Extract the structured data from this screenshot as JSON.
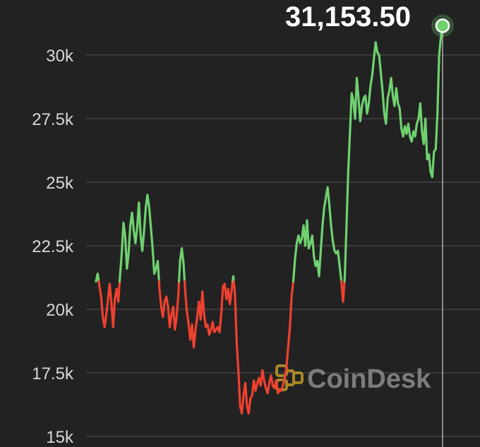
{
  "chart_data": {
    "type": "line",
    "title": "",
    "xlabel": "",
    "ylabel": "",
    "current_price_label": "31,153.50",
    "baseline_value": 21100,
    "ylim": [
      15000,
      31500
    ],
    "yticks": [
      {
        "value": 15000,
        "label": "15k"
      },
      {
        "value": 17500,
        "label": "17.5k"
      },
      {
        "value": 20000,
        "label": "20k"
      },
      {
        "value": 22500,
        "label": "22.5k"
      },
      {
        "value": 25000,
        "label": "25k"
      },
      {
        "value": 27500,
        "label": "27.5k"
      },
      {
        "value": 30000,
        "label": "30k"
      }
    ],
    "grid": true,
    "colors": {
      "above": "#6fd16f",
      "below": "#ef4130",
      "background": "#222222",
      "grid": "#4a4a4a",
      "marker": "#6fd16f"
    },
    "values": [
      21100,
      21400,
      20900,
      20500,
      19700,
      19300,
      19800,
      20400,
      21000,
      20200,
      19300,
      20400,
      20800,
      20300,
      21300,
      22200,
      23400,
      22900,
      21600,
      22200,
      23300,
      23800,
      23100,
      22600,
      23200,
      24200,
      22900,
      22300,
      23100,
      24000,
      24500,
      24000,
      23200,
      22400,
      21400,
      21600,
      21900,
      20800,
      20100,
      19700,
      20300,
      20500,
      20100,
      19300,
      19800,
      20100,
      19200,
      19700,
      20600,
      21900,
      22400,
      21800,
      20700,
      19900,
      19400,
      18800,
      19400,
      18500,
      19200,
      19700,
      20300,
      19600,
      20700,
      19800,
      19300,
      19400,
      19000,
      19200,
      19500,
      19100,
      19200,
      19300,
      19100,
      19800,
      20900,
      21000,
      20400,
      20800,
      20200,
      20700,
      21300,
      20600,
      18700,
      17600,
      16200,
      15900,
      16600,
      17100,
      16200,
      15900,
      16500,
      16600,
      17200,
      16800,
      17100,
      17300,
      17000,
      17600,
      17200,
      16900,
      16700,
      17100,
      17400,
      17000,
      16900,
      17200,
      16700,
      16800,
      16800,
      17000,
      17300,
      17700,
      18500,
      19300,
      20500,
      21100,
      22000,
      22600,
      22900,
      22600,
      22800,
      23300,
      22500,
      23500,
      22400,
      22600,
      22900,
      22100,
      21700,
      21900,
      21300,
      22300,
      23300,
      24000,
      24400,
      24800,
      24100,
      23300,
      22700,
      22300,
      22200,
      22300,
      21700,
      21100,
      20300,
      21300,
      23300,
      25400,
      26900,
      28500,
      28200,
      27500,
      29100,
      28300,
      27400,
      28000,
      28300,
      28400,
      27700,
      28100,
      28800,
      29200,
      29900,
      30500,
      30100,
      30000,
      29300,
      28600,
      27700,
      27300,
      28300,
      28600,
      29100,
      28400,
      28000,
      28700,
      28100,
      27900,
      27100,
      26800,
      27200,
      26900,
      27300,
      26800,
      26600,
      27000,
      26800,
      27300,
      27500,
      28100,
      27000,
      26500,
      27500,
      25900,
      26100,
      25400,
      25200,
      26200,
      26300,
      27700,
      30000,
      30700,
      31153.5
    ]
  }
}
